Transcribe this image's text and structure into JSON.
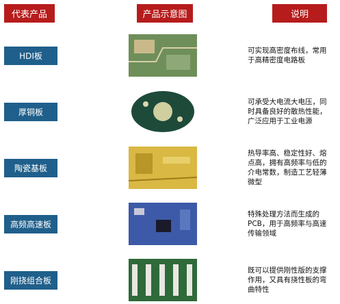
{
  "header": {
    "columns": [
      "代表产品",
      "产品示意图",
      "说明"
    ]
  },
  "table": {
    "rows": [
      {
        "product": "HDI板",
        "description": [
          "可实现高密度布线，常用",
          "于高精密度电路板"
        ]
      },
      {
        "product": "厚铜板",
        "description": [
          "可承受大电流大电压，同",
          "时具备良好的散热性能，",
          "广泛应用于工业电源"
        ]
      },
      {
        "product": "陶瓷基板",
        "description": [
          "热导率高、稳定性好、熔",
          "点高，拥有高频率与低的",
          "介电常数，制造工艺轻薄",
          "微型"
        ]
      },
      {
        "product": "高频高速板",
        "description": [
          "特殊处理方法而生成的",
          "PCB，用于高频率与高速",
          "传输领域"
        ]
      },
      {
        "product": "刚挠组合板",
        "description": [
          "既可以提供刚性版的支撑",
          "作用，又具有挠性板的弯",
          "曲特性"
        ]
      }
    ]
  }
}
